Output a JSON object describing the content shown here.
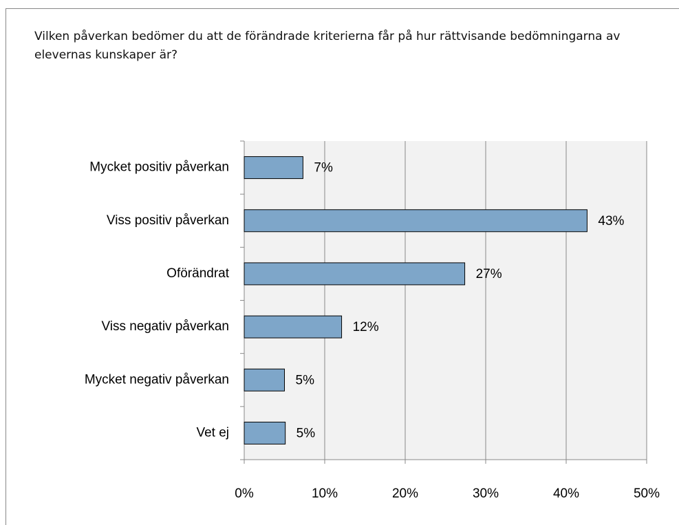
{
  "chart_data": {
    "type": "hbar",
    "title": "Vilken påverkan bedömer du att de förändrade kriterierna får på hur rättvisande bedömningarna av elevernas kunskaper är?",
    "categories": [
      "Mycket positiv påverkan",
      "Viss positiv påverkan",
      "Oförändrat",
      "Viss negativ påverkan",
      "Mycket negativ påverkan",
      "Vet ej"
    ],
    "values": [
      7.3,
      42.6,
      27.4,
      12.1,
      5.0,
      5.1
    ],
    "value_labels": [
      "7%",
      "43%",
      "27%",
      "12%",
      "5%",
      "5%"
    ],
    "color": "#7ea6c9",
    "xlim": [
      0,
      50
    ],
    "xticks": [
      {
        "value": 0,
        "label": "0%"
      },
      {
        "value": 10,
        "label": "10%"
      },
      {
        "value": 20,
        "label": "20%"
      },
      {
        "value": 30,
        "label": "30%"
      },
      {
        "value": 40,
        "label": "40%"
      },
      {
        "value": 50,
        "label": "50%"
      }
    ],
    "grid": true
  }
}
